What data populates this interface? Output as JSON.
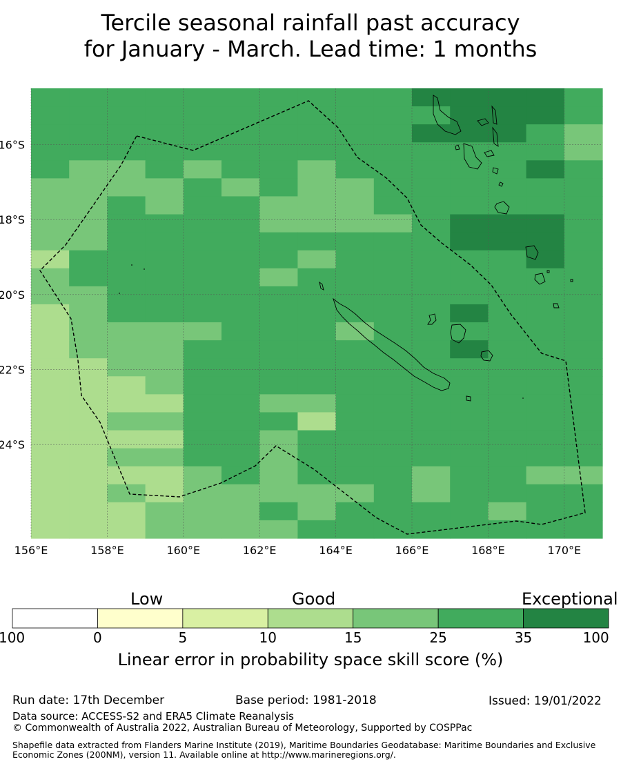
{
  "title": {
    "line1": "Tercile seasonal rainfall past accuracy",
    "line2": "for January - March. Lead time: 1 months"
  },
  "map": {
    "lon_labels": [
      "156°E",
      "158°E",
      "160°E",
      "162°E",
      "164°E",
      "166°E",
      "168°E",
      "170°E"
    ],
    "lat_labels": [
      "16°S",
      "18°S",
      "20°S",
      "22°S",
      "24°S"
    ],
    "lon_range": [
      156,
      171
    ],
    "lat_range": [
      -26.5,
      -14.5
    ],
    "grid_lines": true,
    "boundary_style": "dashed",
    "cell_value_grid": [
      "555555555566665",
      "555555555556665",
      "555555555566654",
      "555555555555554",
      "544545545555565",
      "444454544555555",
      "445455444555555",
      "445555444456665",
      "445555555556665",
      "355555545555565",
      "455555455555555",
      "445555555555555",
      "345555555556555",
      "344445554555555",
      "344455555556555",
      "334455555555555",
      "333455555555555",
      "333355445555555",
      "334455535555555",
      "333355455555555",
      "334455455555555",
      "333345455545544",
      "334344444545555",
      "333444545555455",
      "333444455555555"
    ]
  },
  "colorbar": {
    "category_labels": [
      "Low",
      "Good",
      "Exceptional"
    ],
    "ticks": [
      "-100",
      "0",
      "5",
      "10",
      "15",
      "25",
      "35",
      "100"
    ],
    "colors": [
      "#ffffff",
      "#ffffcc",
      "#d9f0a3",
      "#addd8e",
      "#78c679",
      "#41ab5d",
      "#238443"
    ],
    "title": "Linear error in probability space skill score (%)"
  },
  "footer": {
    "run_date": "Run date: 17th December",
    "base_period": "Base period: 1981-2018",
    "issued": "Issued: 19/01/2022",
    "data_source": "Data source: ACCESS-S2 and ERA5 Climate Reanalysis",
    "copyright": "© Commonwealth of Australia 2022, Australian Bureau of Meteorology, Supported by COSPPac",
    "shapefile": "Shapefile data extracted from Flanders Marine Institute (2019), Maritime Boundaries Geodatabase: Maritime Boundaries and Exclusive Economic Zones (200NM), version 11. Available online at http://www.marineregions.org/."
  }
}
